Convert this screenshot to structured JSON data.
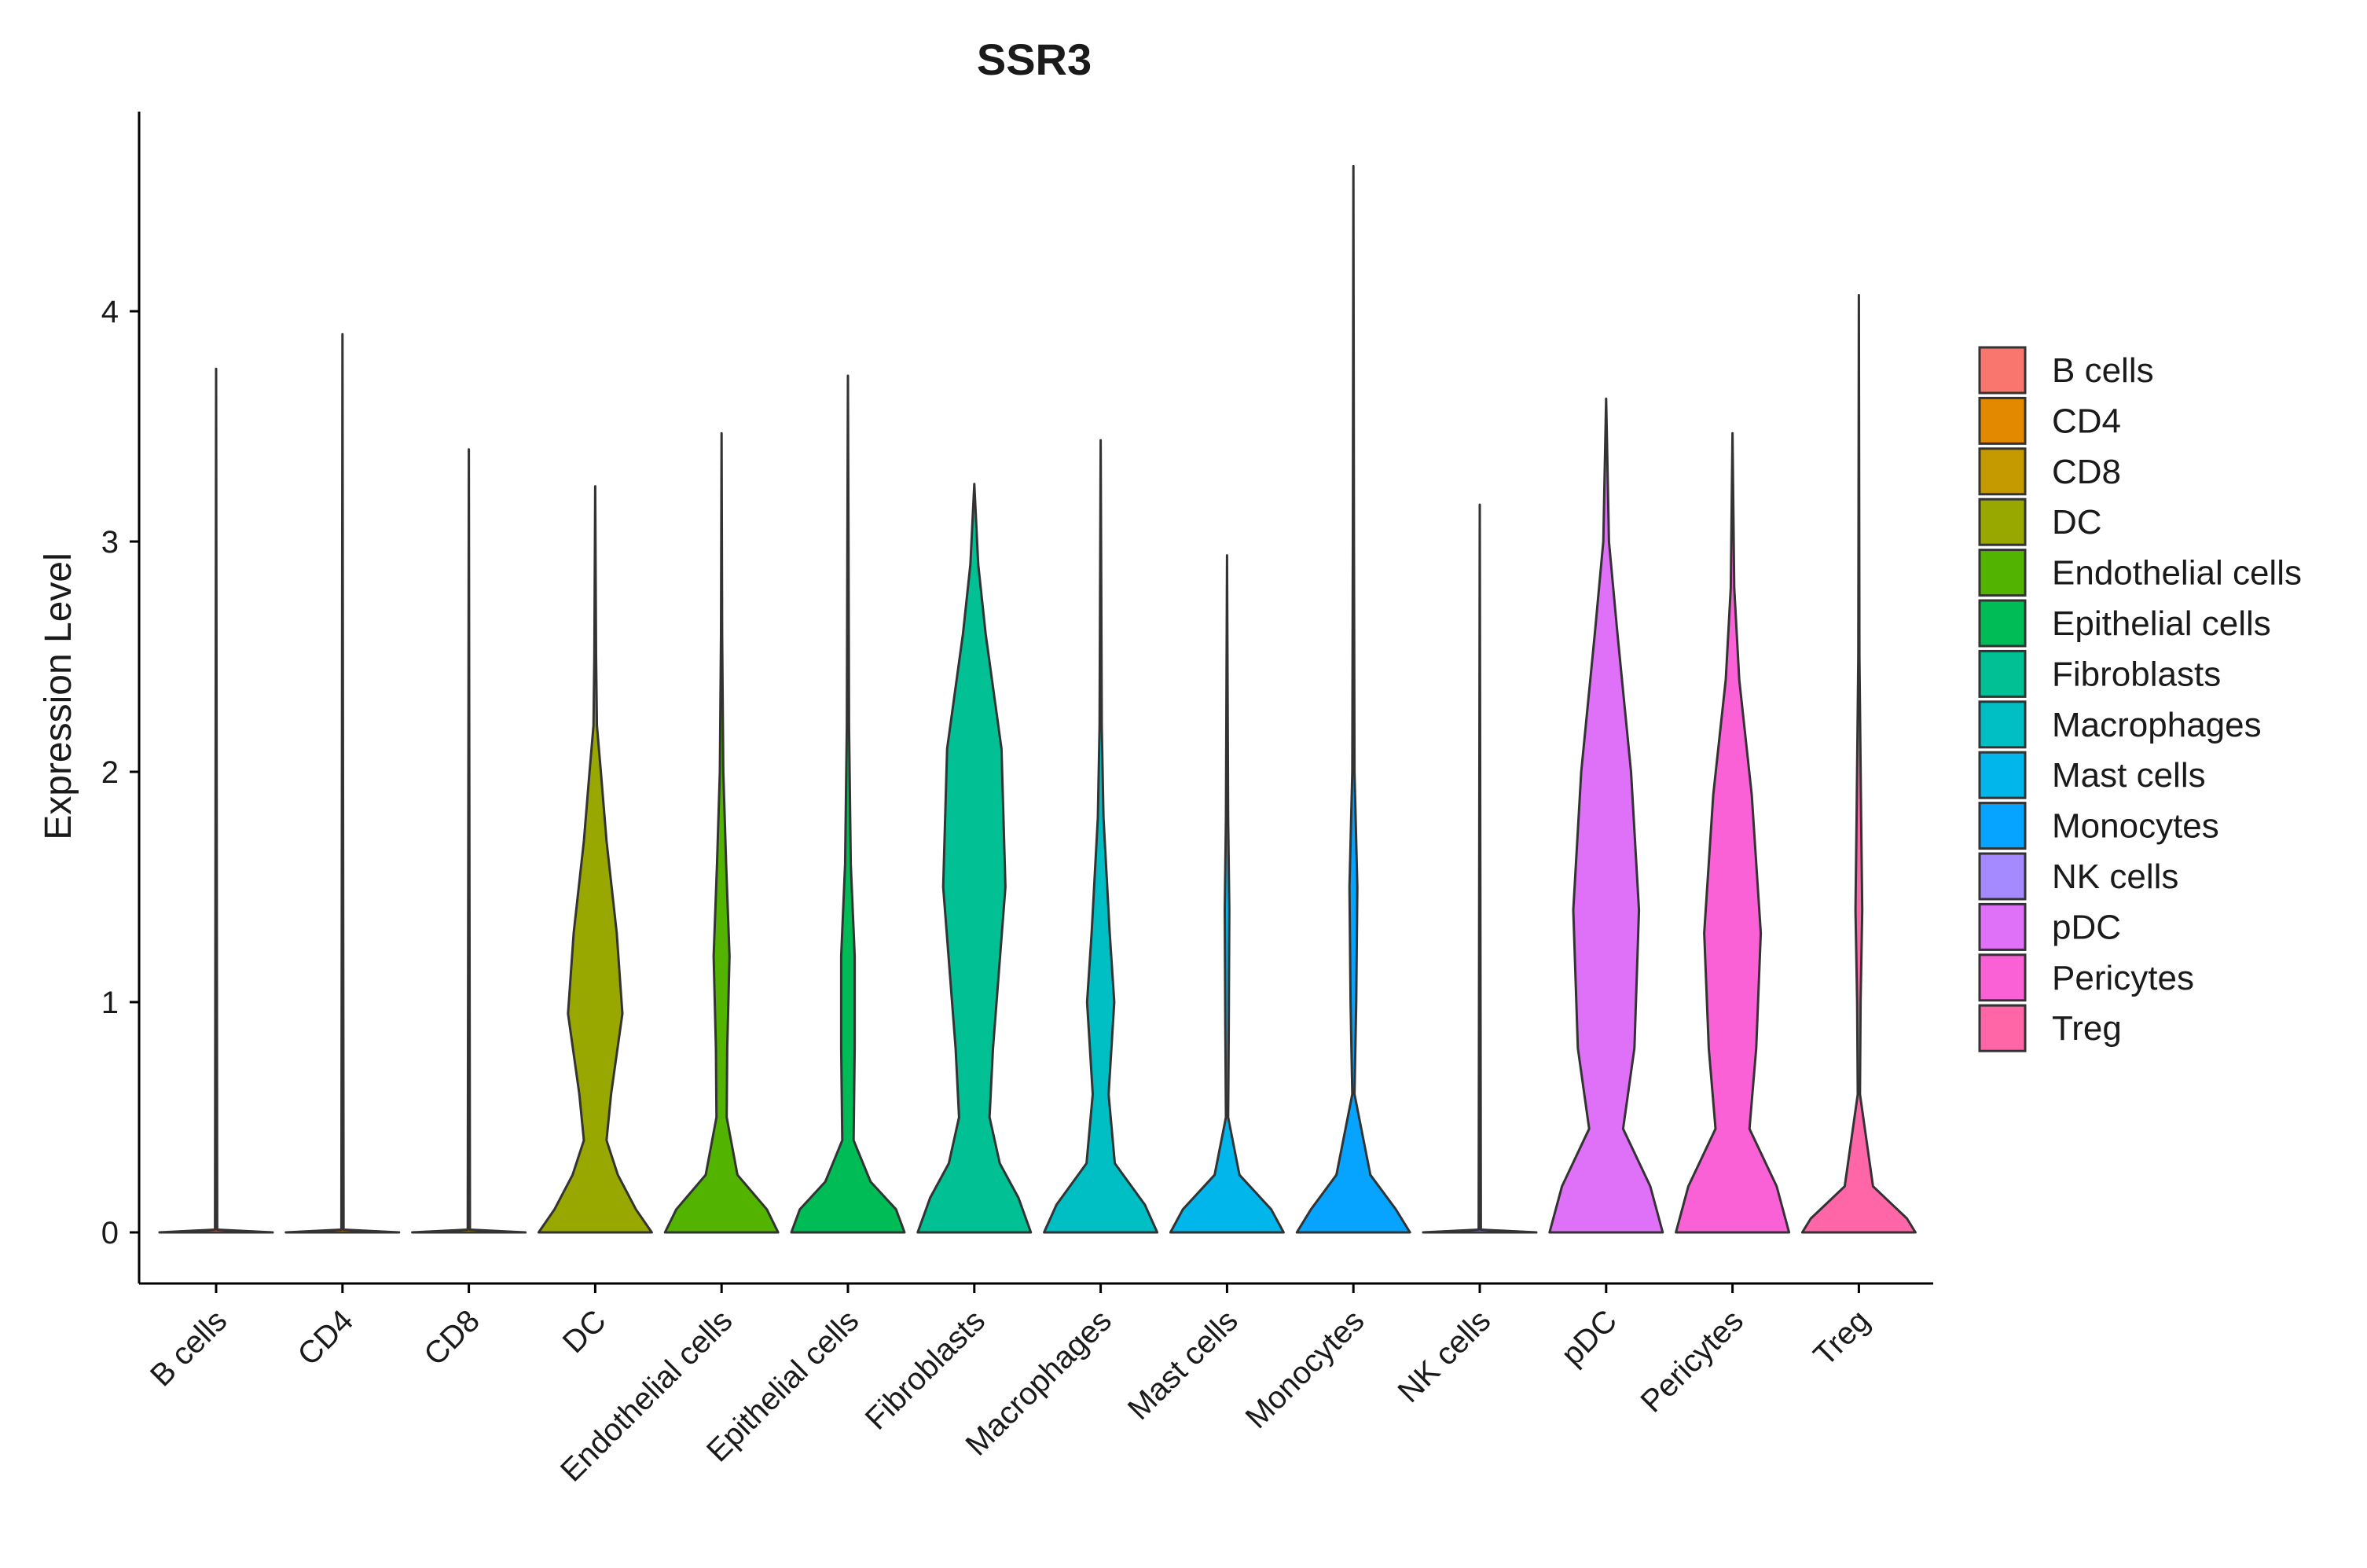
{
  "chart_data": {
    "type": "violin",
    "title": "SSR3",
    "xlabel": "",
    "ylabel": "Expression Level",
    "ylim": [
      -0.22,
      4.82
    ],
    "yticks": [
      0,
      1,
      2,
      3,
      4
    ],
    "grid": false,
    "legend_position": "right",
    "categories": [
      "B cells",
      "CD4",
      "CD8",
      "DC",
      "Endothelial cells",
      "Epithelial cells",
      "Fibroblasts",
      "Macrophages",
      "Mast cells",
      "Monocytes",
      "NK cells",
      "pDC",
      "Pericytes",
      "Treg"
    ],
    "colors": [
      "#F8766D",
      "#E38900",
      "#C49A00",
      "#99A800",
      "#53B400",
      "#00BC56",
      "#00C094",
      "#00BFC4",
      "#00B6EB",
      "#06A4FF",
      "#A58AFF",
      "#DF70F8",
      "#FB61D7",
      "#FF66A8"
    ],
    "max_values": [
      3.75,
      3.9,
      3.4,
      3.24,
      3.47,
      3.72,
      3.25,
      3.44,
      2.94,
      4.63,
      3.16,
      3.62,
      3.47,
      4.07
    ],
    "density_profiles": [
      [
        [
          0,
          1.0
        ],
        [
          0.012,
          0.02
        ],
        [
          3.75,
          0.0
        ]
      ],
      [
        [
          0,
          1.0
        ],
        [
          0.012,
          0.02
        ],
        [
          3.9,
          0.0
        ]
      ],
      [
        [
          0,
          1.0
        ],
        [
          0.012,
          0.02
        ],
        [
          3.4,
          0.0
        ]
      ],
      [
        [
          0,
          1.0
        ],
        [
          0.1,
          0.72
        ],
        [
          0.25,
          0.4
        ],
        [
          0.4,
          0.2
        ],
        [
          0.6,
          0.28
        ],
        [
          0.95,
          0.48
        ],
        [
          1.3,
          0.38
        ],
        [
          1.7,
          0.2
        ],
        [
          2.0,
          0.1
        ],
        [
          2.2,
          0.03
        ],
        [
          2.5,
          0.015
        ],
        [
          3.24,
          0.0
        ]
      ],
      [
        [
          0,
          1.0
        ],
        [
          0.1,
          0.8
        ],
        [
          0.25,
          0.28
        ],
        [
          0.5,
          0.09
        ],
        [
          0.8,
          0.1
        ],
        [
          1.2,
          0.14
        ],
        [
          1.6,
          0.08
        ],
        [
          2.0,
          0.03
        ],
        [
          2.6,
          0.01
        ],
        [
          3.47,
          0.0
        ]
      ],
      [
        [
          0,
          1.0
        ],
        [
          0.1,
          0.85
        ],
        [
          0.22,
          0.4
        ],
        [
          0.4,
          0.1
        ],
        [
          0.8,
          0.12
        ],
        [
          1.2,
          0.12
        ],
        [
          1.6,
          0.05
        ],
        [
          2.2,
          0.02
        ],
        [
          3.0,
          0.01
        ],
        [
          3.72,
          0.0
        ]
      ],
      [
        [
          0,
          1.0
        ],
        [
          0.15,
          0.78
        ],
        [
          0.3,
          0.45
        ],
        [
          0.5,
          0.27
        ],
        [
          0.8,
          0.33
        ],
        [
          1.5,
          0.55
        ],
        [
          2.1,
          0.48
        ],
        [
          2.6,
          0.2
        ],
        [
          2.9,
          0.07
        ],
        [
          3.25,
          0.0
        ]
      ],
      [
        [
          0,
          1.0
        ],
        [
          0.12,
          0.78
        ],
        [
          0.3,
          0.25
        ],
        [
          0.6,
          0.14
        ],
        [
          1.0,
          0.24
        ],
        [
          1.3,
          0.16
        ],
        [
          1.8,
          0.05
        ],
        [
          2.2,
          0.02
        ],
        [
          3.44,
          0.0
        ]
      ],
      [
        [
          0,
          1.0
        ],
        [
          0.1,
          0.78
        ],
        [
          0.25,
          0.22
        ],
        [
          0.5,
          0.02
        ],
        [
          0.9,
          0.03
        ],
        [
          1.4,
          0.04
        ],
        [
          1.8,
          0.02
        ],
        [
          2.94,
          0.0
        ]
      ],
      [
        [
          0,
          1.0
        ],
        [
          0.1,
          0.75
        ],
        [
          0.25,
          0.3
        ],
        [
          0.6,
          0.02
        ],
        [
          1.0,
          0.05
        ],
        [
          1.5,
          0.07
        ],
        [
          2.0,
          0.02
        ],
        [
          3.0,
          0.01
        ],
        [
          4.63,
          0.0
        ]
      ],
      [
        [
          0,
          1.0
        ],
        [
          0.012,
          0.02
        ],
        [
          3.16,
          0.0
        ]
      ],
      [
        [
          0,
          1.0
        ],
        [
          0.2,
          0.78
        ],
        [
          0.45,
          0.3
        ],
        [
          0.8,
          0.5
        ],
        [
          1.4,
          0.58
        ],
        [
          2.0,
          0.44
        ],
        [
          2.6,
          0.2
        ],
        [
          3.0,
          0.05
        ],
        [
          3.62,
          0.0
        ]
      ],
      [
        [
          0,
          1.0
        ],
        [
          0.2,
          0.78
        ],
        [
          0.45,
          0.3
        ],
        [
          0.8,
          0.42
        ],
        [
          1.3,
          0.5
        ],
        [
          1.9,
          0.34
        ],
        [
          2.4,
          0.12
        ],
        [
          2.8,
          0.03
        ],
        [
          3.47,
          0.0
        ]
      ],
      [
        [
          0,
          1.0
        ],
        [
          0.06,
          0.85
        ],
        [
          0.2,
          0.25
        ],
        [
          0.6,
          0.02
        ],
        [
          1.0,
          0.03
        ],
        [
          1.4,
          0.06
        ],
        [
          1.8,
          0.04
        ],
        [
          2.5,
          0.01
        ],
        [
          4.07,
          0.0
        ]
      ]
    ]
  }
}
